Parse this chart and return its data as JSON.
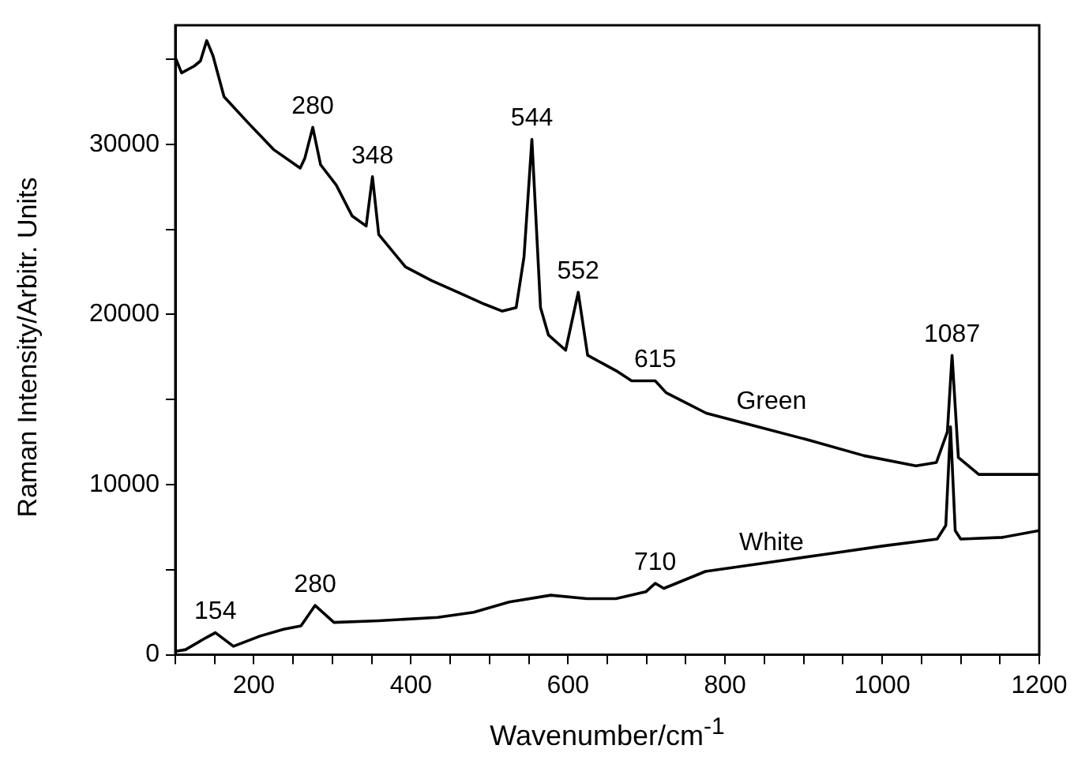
{
  "chart_data": {
    "type": "line",
    "xlabel": "Wavenumber/cm$^{-1}$",
    "ylabel": "Raman Intensity/Arbitr. Units",
    "xlim": [
      100,
      1200
    ],
    "ylim": [
      0,
      37000
    ],
    "xticks": [
      {
        "value": 100,
        "label": null
      },
      {
        "value": 150,
        "label": null
      },
      200,
      {
        "value": 250,
        "label": null
      },
      {
        "value": 300,
        "label": null
      },
      {
        "value": 350,
        "label": null
      },
      400,
      {
        "value": 450,
        "label": null
      },
      {
        "value": 500,
        "label": null
      },
      {
        "value": 550,
        "label": null
      },
      600,
      {
        "value": 650,
        "label": null
      },
      {
        "value": 700,
        "label": null
      },
      {
        "value": 750,
        "label": null
      },
      800,
      {
        "value": 850,
        "label": null
      },
      {
        "value": 900,
        "label": null
      },
      {
        "value": 950,
        "label": null
      },
      1000,
      {
        "value": 1050,
        "label": null
      },
      {
        "value": 1100,
        "label": null
      },
      {
        "value": 1150,
        "label": null
      },
      1200
    ],
    "yticks": [
      0,
      {
        "value": 5000,
        "label": null
      },
      10000,
      {
        "value": 15000,
        "label": null
      },
      20000,
      {
        "value": 25000,
        "label": null
      },
      30000,
      {
        "value": 35000,
        "label": null
      }
    ],
    "grid": false,
    "legend": false,
    "marker": "none",
    "line_style": "solid",
    "series": [
      {
        "name": "Green",
        "color": "#000000",
        "x": [
          100,
          108,
          124,
          132,
          140,
          148,
          162,
          192,
          225,
          259,
          265,
          275,
          285,
          305,
          325,
          343,
          351,
          359,
          393,
          426,
          460,
          494,
          516,
          534,
          544,
          554,
          565,
          575,
          597,
          613,
          625,
          661,
          681,
          711,
          725,
          776,
          842,
          908,
          977,
          1043,
          1069,
          1083,
          1089,
          1097,
          1123,
          1178,
          1200
        ],
        "values": [
          35100,
          34200,
          34600,
          34900,
          36100,
          35200,
          32800,
          31300,
          29700,
          28600,
          29200,
          31000,
          28800,
          27600,
          25800,
          25200,
          28100,
          24700,
          22800,
          22000,
          21300,
          20600,
          20200,
          20400,
          23400,
          30300,
          20400,
          18800,
          17900,
          21300,
          17600,
          16700,
          16100,
          16100,
          15400,
          14200,
          13400,
          12600,
          11700,
          11100,
          11300,
          13100,
          17600,
          11600,
          10600,
          10600,
          10600
        ]
      },
      {
        "name": "White",
        "color": "#000000",
        "x": [
          100,
          113,
          139,
          151,
          174,
          208,
          238,
          260,
          278,
          302,
          359,
          434,
          480,
          525,
          578,
          624,
          661,
          699,
          711,
          722,
          775,
          851,
          926,
          1002,
          1070,
          1081,
          1087,
          1093,
          1100,
          1153,
          1200
        ],
        "values": [
          200,
          300,
          1000,
          1300,
          500,
          1100,
          1500,
          1700,
          2900,
          1900,
          2000,
          2200,
          2500,
          3100,
          3500,
          3300,
          3300,
          3700,
          4200,
          3900,
          4900,
          5400,
          5900,
          6400,
          6800,
          7600,
          13400,
          7300,
          6800,
          6900,
          7300
        ]
      }
    ],
    "annotations": [
      {
        "text": "280",
        "x": 275,
        "y": 31000
      },
      {
        "text": "348",
        "x": 351,
        "y": 28100
      },
      {
        "text": "544",
        "x": 554,
        "y": 30300
      },
      {
        "text": "552",
        "x": 613,
        "y": 21300
      },
      {
        "text": "615",
        "x": 711,
        "y": 16100
      },
      {
        "text": "1087",
        "x": 1089,
        "y": 17600
      },
      {
        "text": "154",
        "x": 151,
        "y": 1300
      },
      {
        "text": "280",
        "x": 278,
        "y": 2900
      },
      {
        "text": "710",
        "x": 711,
        "y": 4200
      }
    ]
  }
}
